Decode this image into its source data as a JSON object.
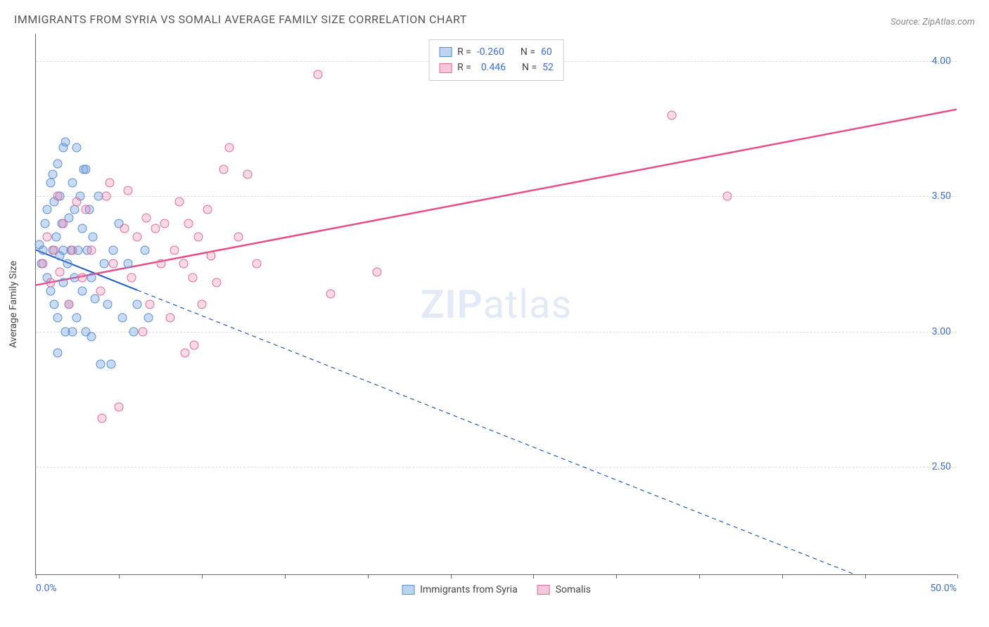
{
  "title": "IMMIGRANTS FROM SYRIA VS SOMALI AVERAGE FAMILY SIZE CORRELATION CHART",
  "source": "Source: ZipAtlas.com",
  "watermark_zip": "ZIP",
  "watermark_atlas": "atlas",
  "y_axis_label": "Average Family Size",
  "x_min_label": "0.0%",
  "x_max_label": "50.0%",
  "chart": {
    "type": "scatter",
    "background_color": "#ffffff",
    "grid_color": "#dddddd",
    "axis_color": "#666666",
    "xlim": [
      0,
      50
    ],
    "ylim": [
      2.1,
      4.1
    ],
    "x_ticks": [
      0,
      4.5,
      9,
      13.5,
      18,
      22.5,
      27,
      31.5,
      36,
      40.5,
      45,
      50
    ],
    "y_ticks": [
      {
        "v": 2.5,
        "label": "2.50"
      },
      {
        "v": 3.0,
        "label": "3.00"
      },
      {
        "v": 3.5,
        "label": "3.50"
      },
      {
        "v": 4.0,
        "label": "4.00"
      }
    ],
    "series": [
      {
        "name": "Immigrants from Syria",
        "color_fill": "rgba(100,150,220,0.35)",
        "color_stroke": "#5a8fd6",
        "swatch_fill": "#bdd4f0",
        "swatch_border": "#5a8fd6",
        "trend_color": "#1f5bbf",
        "trend_width": 2,
        "trend_dash_after_x": 5.5,
        "trend": {
          "x1": 0,
          "y1": 3.3,
          "x2": 50,
          "y2": 1.95
        },
        "R": "-0.260",
        "N": "60",
        "points": [
          [
            0.2,
            3.32
          ],
          [
            0.3,
            3.25
          ],
          [
            0.4,
            3.3
          ],
          [
            0.5,
            3.4
          ],
          [
            0.6,
            3.2
          ],
          [
            0.6,
            3.45
          ],
          [
            0.8,
            3.55
          ],
          [
            0.8,
            3.15
          ],
          [
            0.9,
            3.3
          ],
          [
            1.0,
            3.48
          ],
          [
            1.0,
            3.1
          ],
          [
            1.1,
            3.35
          ],
          [
            1.2,
            3.62
          ],
          [
            1.2,
            3.05
          ],
          [
            1.3,
            3.28
          ],
          [
            1.3,
            3.5
          ],
          [
            1.4,
            3.4
          ],
          [
            1.5,
            3.18
          ],
          [
            1.5,
            3.3
          ],
          [
            1.5,
            3.68
          ],
          [
            1.6,
            3.7
          ],
          [
            1.7,
            3.25
          ],
          [
            1.8,
            3.1
          ],
          [
            1.8,
            3.42
          ],
          [
            1.9,
            3.3
          ],
          [
            2.0,
            3.55
          ],
          [
            2.0,
            3.0
          ],
          [
            2.1,
            3.2
          ],
          [
            2.1,
            3.45
          ],
          [
            2.2,
            3.68
          ],
          [
            2.2,
            3.05
          ],
          [
            2.3,
            3.3
          ],
          [
            2.4,
            3.5
          ],
          [
            2.5,
            3.15
          ],
          [
            2.5,
            3.38
          ],
          [
            2.6,
            3.6
          ],
          [
            2.7,
            3.0
          ],
          [
            2.8,
            3.3
          ],
          [
            2.9,
            3.45
          ],
          [
            3.0,
            3.2
          ],
          [
            3.0,
            2.98
          ],
          [
            3.1,
            3.35
          ],
          [
            3.2,
            3.12
          ],
          [
            3.4,
            3.5
          ],
          [
            3.5,
            2.88
          ],
          [
            3.7,
            3.25
          ],
          [
            3.9,
            3.1
          ],
          [
            4.1,
            2.88
          ],
          [
            4.2,
            3.3
          ],
          [
            4.5,
            3.4
          ],
          [
            4.7,
            3.05
          ],
          [
            5.0,
            3.25
          ],
          [
            5.3,
            3.0
          ],
          [
            5.5,
            3.1
          ],
          [
            5.9,
            3.3
          ],
          [
            6.1,
            3.05
          ],
          [
            1.2,
            2.92
          ],
          [
            1.6,
            3.0
          ],
          [
            0.9,
            3.58
          ],
          [
            2.7,
            3.6
          ]
        ]
      },
      {
        "name": "Somalis",
        "color_fill": "rgba(235,130,165,0.30)",
        "color_stroke": "#e06c9f",
        "swatch_fill": "#f6c6d9",
        "swatch_border": "#e06c9f",
        "trend_color": "#e54d8b",
        "trend_width": 2.5,
        "trend_dash_after_x": 100,
        "trend": {
          "x1": 0,
          "y1": 3.17,
          "x2": 50,
          "y2": 3.82
        },
        "R": "0.446",
        "N": "52",
        "points": [
          [
            0.4,
            3.25
          ],
          [
            0.6,
            3.35
          ],
          [
            0.8,
            3.18
          ],
          [
            1.0,
            3.3
          ],
          [
            1.2,
            3.5
          ],
          [
            1.3,
            3.22
          ],
          [
            1.5,
            3.4
          ],
          [
            1.8,
            3.1
          ],
          [
            2.0,
            3.3
          ],
          [
            2.2,
            3.48
          ],
          [
            2.5,
            3.2
          ],
          [
            2.7,
            3.45
          ],
          [
            3.0,
            3.3
          ],
          [
            3.5,
            3.15
          ],
          [
            3.6,
            2.68
          ],
          [
            3.8,
            3.5
          ],
          [
            4.0,
            3.55
          ],
          [
            4.2,
            3.25
          ],
          [
            4.5,
            2.72
          ],
          [
            4.8,
            3.38
          ],
          [
            5.0,
            3.52
          ],
          [
            5.2,
            3.2
          ],
          [
            5.5,
            3.35
          ],
          [
            5.8,
            3.0
          ],
          [
            6.0,
            3.42
          ],
          [
            6.2,
            3.1
          ],
          [
            6.5,
            3.38
          ],
          [
            6.8,
            3.25
          ],
          [
            7.0,
            3.4
          ],
          [
            7.3,
            3.05
          ],
          [
            7.5,
            3.3
          ],
          [
            7.8,
            3.48
          ],
          [
            8.0,
            3.25
          ],
          [
            8.1,
            2.92
          ],
          [
            8.3,
            3.4
          ],
          [
            8.5,
            3.2
          ],
          [
            8.8,
            3.35
          ],
          [
            9.0,
            3.1
          ],
          [
            9.3,
            3.45
          ],
          [
            9.5,
            3.28
          ],
          [
            9.8,
            3.18
          ],
          [
            10.2,
            3.6
          ],
          [
            10.5,
            3.68
          ],
          [
            11.0,
            3.35
          ],
          [
            11.5,
            3.58
          ],
          [
            12.0,
            3.25
          ],
          [
            15.3,
            3.95
          ],
          [
            16.0,
            3.14
          ],
          [
            18.5,
            3.22
          ],
          [
            34.5,
            3.8
          ],
          [
            37.5,
            3.5
          ],
          [
            8.6,
            2.95
          ]
        ]
      }
    ]
  },
  "legend_labels": {
    "R_label": "R =",
    "N_label": "N ="
  }
}
